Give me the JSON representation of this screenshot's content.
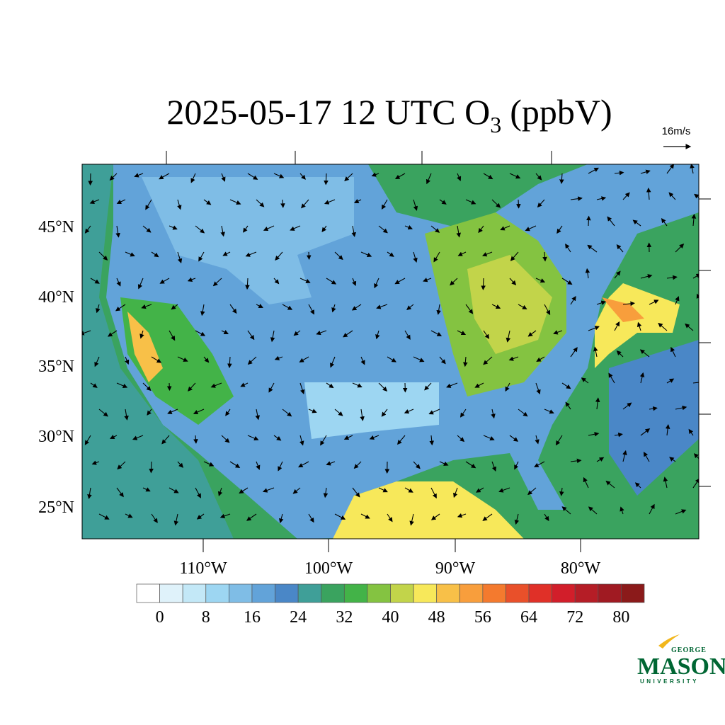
{
  "header": {
    "title": "2025-05-17 12 UTC O",
    "title_subscript": "3",
    "title_suffix": "(ppbV)",
    "wind_reference": "16m/s"
  },
  "map": {
    "lat_labels": [
      "45°N",
      "40°N",
      "35°N",
      "30°N",
      "25°N"
    ],
    "lon_labels": [
      "110°W",
      "100°W",
      "90°W",
      "80°W"
    ]
  },
  "colorbar": {
    "ticks": [
      0,
      8,
      16,
      24,
      32,
      40,
      48,
      56,
      64,
      72,
      80
    ],
    "colors": [
      "#ffffff",
      "#dff2fa",
      "#c3e8f7",
      "#9dd6f2",
      "#7fbde6",
      "#62a3d9",
      "#4a87c7",
      "#3f9f98",
      "#3aa35f",
      "#43b348",
      "#84c341",
      "#c2d44a",
      "#f7e85a",
      "#f8c048",
      "#f89e3c",
      "#f47a2e",
      "#e9502a",
      "#e03028",
      "#d21e2a",
      "#b51d26",
      "#a01a22",
      "#8b1a1a"
    ]
  },
  "logo": {
    "line1": "GEORGE",
    "line2": "MASON",
    "line3": "UNIVERSITY"
  }
}
